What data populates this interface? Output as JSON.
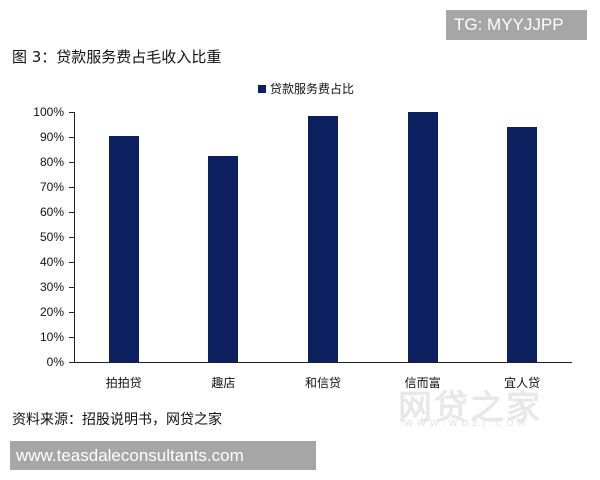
{
  "watermark_top": "TG: MYYJJPP",
  "figure_title": "图 3：贷款服务费占毛收入比重",
  "legend": {
    "label": "贷款服务费占比",
    "color": "#0c2060"
  },
  "source": "资料来源：招股说明书，网贷之家",
  "watermark_logo": "网贷之家",
  "watermark_logo_sub": "WWW.WDZJ.COM",
  "watermark_bottom": "www.teasdaleconsultants.com",
  "chart_data": {
    "type": "bar",
    "title": "图 3：贷款服务费占毛收入比重",
    "categories": [
      "拍拍贷",
      "趣店",
      "和信贷",
      "信而富",
      "宜人贷"
    ],
    "series": [
      {
        "name": "贷款服务费占比",
        "values": [
          90.5,
          82.5,
          98.5,
          100,
          94
        ],
        "color": "#0c2060"
      }
    ],
    "xlabel": "",
    "ylabel": "",
    "ylim": [
      0,
      100
    ],
    "yticks": [
      "0%",
      "10%",
      "20%",
      "30%",
      "40%",
      "50%",
      "60%",
      "70%",
      "80%",
      "90%",
      "100%"
    ],
    "grid": false,
    "legend_position": "top"
  }
}
